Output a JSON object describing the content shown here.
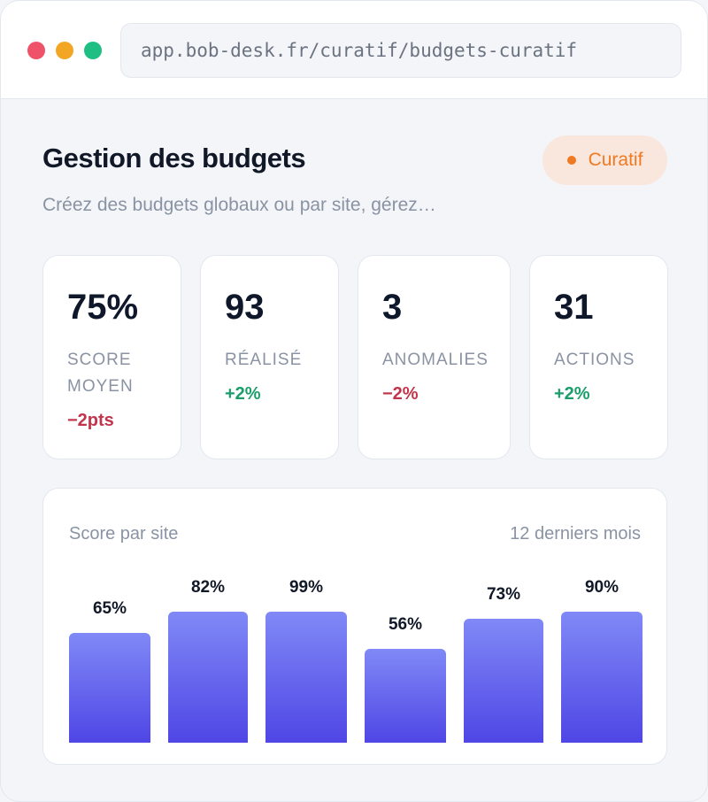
{
  "browser": {
    "url": "app.bob-desk.fr/curatif/budgets-curatif"
  },
  "header": {
    "title": "Gestion des budgets",
    "subtitle": "Créez des budgets globaux ou par site, gérez…",
    "badge": "Curatif"
  },
  "stats": [
    {
      "value": "75%",
      "label": "SCORE MOYEN",
      "change": "−2pts",
      "trend": "negative"
    },
    {
      "value": "93",
      "label": "RÉALISÉ",
      "change": "+2%",
      "trend": "positive"
    },
    {
      "value": "3",
      "label": "ANOMALIES",
      "change": "−2%",
      "trend": "negative"
    },
    {
      "value": "31",
      "label": "ACTIONS",
      "change": "+2%",
      "trend": "positive"
    }
  ],
  "chart": {
    "title": "Score par site",
    "range": "12 derniers mois"
  },
  "chart_data": {
    "type": "bar",
    "values": [
      65,
      82,
      99,
      56,
      73,
      90
    ],
    "labels": [
      "65%",
      "82%",
      "99%",
      "56%",
      "73%",
      "90%"
    ]
  },
  "colors": {
    "accent": "#4f46e5",
    "badge": "#f07a22",
    "positive": "#1a9e6a",
    "negative": "#c2344b"
  }
}
